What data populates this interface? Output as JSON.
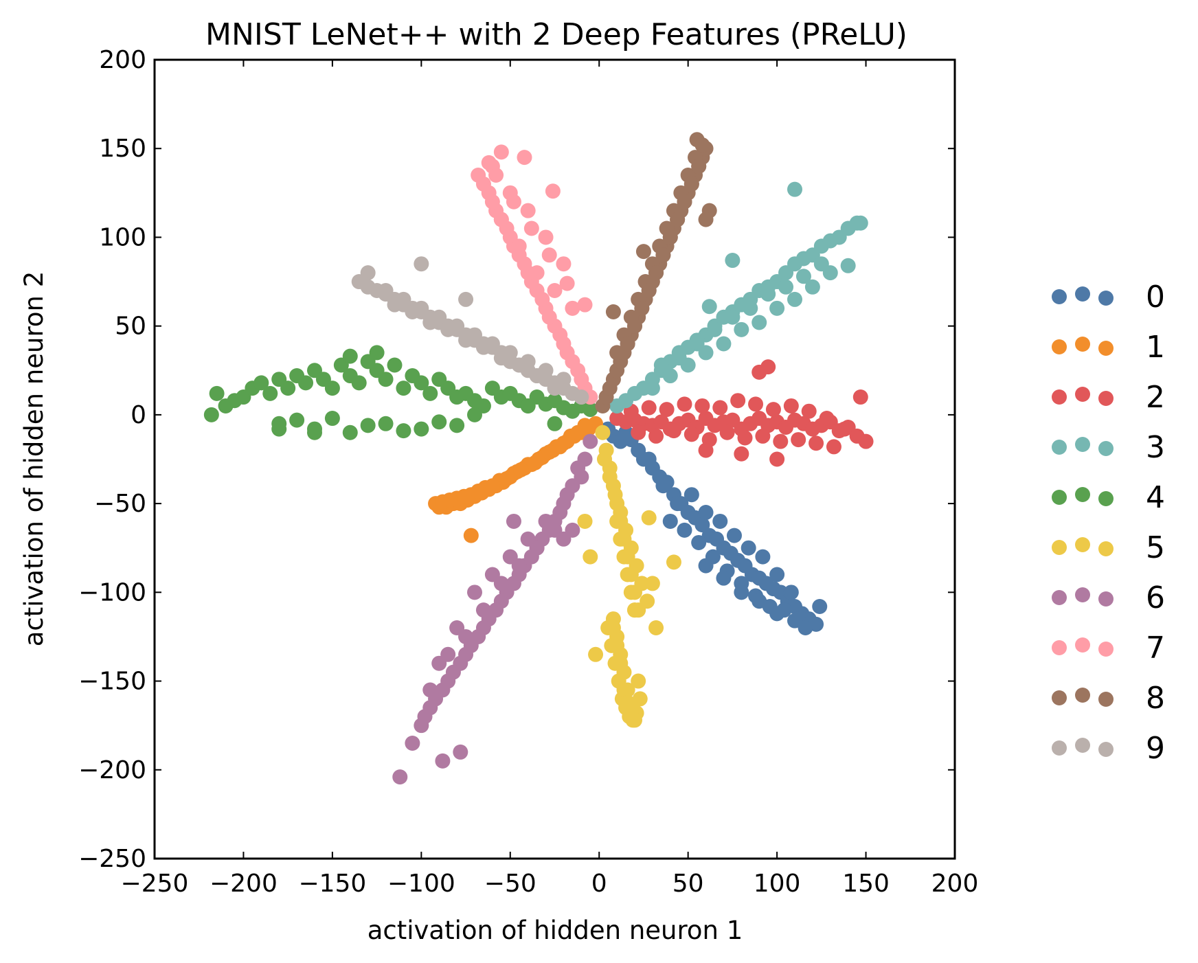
{
  "chart_data": {
    "type": "scatter",
    "title": "MNIST LeNet++ with 2 Deep Features (PReLU)",
    "xlabel": "activation of hidden neuron 1",
    "ylabel": "activation of hidden neuron 2",
    "xlim": [
      -250,
      200
    ],
    "ylim": [
      -250,
      200
    ],
    "xticks": [
      -250,
      -200,
      -150,
      -100,
      -50,
      0,
      50,
      100,
      150,
      200
    ],
    "yticks": [
      -250,
      -200,
      -150,
      -100,
      -50,
      0,
      50,
      100,
      150,
      200
    ],
    "xtick_labels": [
      "−250",
      "−200",
      "−150",
      "−100",
      "−50",
      "0",
      "50",
      "100",
      "150",
      "200"
    ],
    "ytick_labels": [
      "−250",
      "−200",
      "−150",
      "−100",
      "−50",
      "0",
      "50",
      "100",
      "150",
      "200"
    ],
    "grid": false,
    "legend_position": "outside-right",
    "series": [
      {
        "name": "0",
        "color": "#4e79a7",
        "x": [
          5,
          8,
          12,
          15,
          18,
          22,
          25,
          30,
          34,
          38,
          42,
          46,
          50,
          54,
          58,
          62,
          66,
          70,
          74,
          78,
          82,
          86,
          90,
          94,
          98,
          102,
          106,
          110,
          114,
          118,
          122,
          40,
          48,
          56,
          64,
          72,
          80,
          88,
          96,
          104,
          112,
          52,
          60,
          68,
          76,
          84,
          92,
          100,
          108,
          116,
          36,
          44,
          28,
          124,
          60,
          70,
          80,
          90,
          100,
          110
        ],
        "y": [
          -8,
          -12,
          -15,
          -10,
          -14,
          -20,
          -25,
          -30,
          -35,
          -38,
          -45,
          -50,
          -55,
          -58,
          -62,
          -68,
          -70,
          -75,
          -78,
          -82,
          -85,
          -90,
          -92,
          -95,
          -98,
          -100,
          -105,
          -108,
          -112,
          -115,
          -118,
          -60,
          -65,
          -72,
          -80,
          -88,
          -95,
          -102,
          -108,
          -110,
          -115,
          -45,
          -55,
          -60,
          -68,
          -75,
          -80,
          -90,
          -100,
          -120,
          -40,
          -50,
          -25,
          -108,
          -85,
          -92,
          -100,
          -105,
          -112,
          -116
        ]
      },
      {
        "name": "1",
        "color": "#f28e2b",
        "x": [
          -2,
          -6,
          -10,
          -14,
          -18,
          -22,
          -26,
          -30,
          -34,
          -38,
          -42,
          -46,
          -50,
          -54,
          -58,
          -62,
          -66,
          -70,
          -74,
          -78,
          -82,
          -86,
          -90,
          -92,
          -8,
          -16,
          -24,
          -32,
          -40,
          -48,
          -56,
          -64,
          -72,
          -80,
          -88,
          -12,
          -20,
          -28,
          -36,
          -44,
          -52,
          -60,
          -68,
          -76,
          -84,
          -72
        ],
        "y": [
          -5,
          -8,
          -10,
          -12,
          -15,
          -18,
          -20,
          -22,
          -25,
          -28,
          -30,
          -32,
          -35,
          -38,
          -40,
          -42,
          -44,
          -46,
          -48,
          -50,
          -50,
          -52,
          -52,
          -50,
          -6,
          -12,
          -18,
          -24,
          -28,
          -33,
          -37,
          -41,
          -45,
          -47,
          -49,
          -10,
          -16,
          -21,
          -27,
          -31,
          -36,
          -40,
          -43,
          -46,
          -48,
          -68
        ]
      },
      {
        "name": "2",
        "color": "#e15759",
        "x": [
          10,
          15,
          20,
          25,
          30,
          35,
          40,
          45,
          50,
          55,
          60,
          65,
          70,
          75,
          80,
          85,
          90,
          95,
          100,
          105,
          110,
          115,
          120,
          125,
          130,
          135,
          140,
          145,
          150,
          18,
          28,
          38,
          48,
          58,
          68,
          78,
          88,
          98,
          108,
          118,
          128,
          138,
          22,
          32,
          42,
          52,
          62,
          72,
          82,
          92,
          102,
          112,
          122,
          132,
          90,
          147,
          95,
          60,
          80,
          100
        ],
        "y": [
          -2,
          -4,
          -3,
          -5,
          -6,
          -4,
          -8,
          -5,
          -3,
          -7,
          -2,
          -6,
          -4,
          -3,
          -8,
          -5,
          -2,
          -6,
          -4,
          -7,
          -3,
          -5,
          -8,
          -6,
          -4,
          -9,
          -7,
          -12,
          -15,
          2,
          4,
          3,
          6,
          5,
          4,
          8,
          6,
          3,
          5,
          2,
          -2,
          -8,
          -10,
          -12,
          -9,
          -11,
          -14,
          -10,
          -13,
          -12,
          -15,
          -14,
          -16,
          -18,
          24,
          10,
          27,
          -20,
          -22,
          -25
        ]
      },
      {
        "name": "3",
        "color": "#76b7b2",
        "x": [
          10,
          15,
          20,
          25,
          30,
          35,
          40,
          45,
          50,
          55,
          60,
          65,
          70,
          75,
          80,
          85,
          90,
          95,
          100,
          105,
          110,
          115,
          120,
          125,
          130,
          135,
          140,
          145,
          147,
          30,
          40,
          50,
          60,
          70,
          80,
          90,
          100,
          110,
          120,
          130,
          35,
          45,
          55,
          65,
          75,
          85,
          95,
          105,
          115,
          125,
          110,
          62,
          75,
          140
        ],
        "y": [
          5,
          8,
          12,
          15,
          20,
          25,
          30,
          32,
          38,
          40,
          45,
          50,
          55,
          58,
          62,
          65,
          70,
          72,
          75,
          80,
          85,
          88,
          90,
          95,
          98,
          100,
          105,
          108,
          108,
          15,
          22,
          28,
          35,
          40,
          48,
          52,
          60,
          65,
          72,
          80,
          28,
          35,
          42,
          48,
          55,
          60,
          68,
          72,
          78,
          85,
          127,
          61,
          87,
          84
        ]
      },
      {
        "name": "4",
        "color": "#59a14f",
        "x": [
          -218,
          -215,
          -210,
          -205,
          -200,
          -195,
          -190,
          -185,
          -180,
          -175,
          -170,
          -165,
          -160,
          -155,
          -150,
          -145,
          -140,
          -135,
          -130,
          -125,
          -120,
          -115,
          -110,
          -105,
          -100,
          -95,
          -90,
          -85,
          -80,
          -75,
          -70,
          -65,
          -60,
          -55,
          -50,
          -45,
          -40,
          -35,
          -30,
          -25,
          -20,
          -15,
          -10,
          -5,
          -180,
          -160,
          -140,
          -120,
          -100,
          -80,
          -170,
          -150,
          -130,
          -110,
          -90,
          -125,
          -140,
          -160,
          -180,
          -40,
          -25,
          -70
        ],
        "y": [
          0,
          12,
          5,
          8,
          10,
          15,
          18,
          12,
          20,
          15,
          22,
          18,
          25,
          20,
          15,
          28,
          22,
          18,
          30,
          25,
          20,
          28,
          15,
          22,
          18,
          12,
          20,
          15,
          10,
          12,
          8,
          5,
          15,
          10,
          12,
          8,
          5,
          10,
          6,
          8,
          4,
          2,
          5,
          3,
          -5,
          -8,
          -10,
          -5,
          -8,
          -6,
          -3,
          -2,
          -6,
          -9,
          -4,
          35,
          33,
          -10,
          -8,
          5,
          -5,
          0
        ]
      },
      {
        "name": "5",
        "color": "#edc948",
        "x": [
          2,
          4,
          6,
          8,
          10,
          12,
          14,
          16,
          18,
          20,
          22,
          5,
          7,
          9,
          11,
          13,
          15,
          17,
          19,
          21,
          23,
          3,
          6,
          9,
          12,
          15,
          18,
          21,
          24,
          27,
          8,
          10,
          12,
          14,
          16,
          18,
          20,
          22,
          10,
          12,
          14,
          16,
          18,
          20,
          8,
          10,
          12,
          14,
          16,
          18,
          20,
          42,
          -5,
          -8,
          30,
          28,
          -2,
          32
        ],
        "y": [
          -10,
          -20,
          -30,
          -40,
          -50,
          -60,
          -70,
          -80,
          -90,
          -100,
          -110,
          -120,
          -130,
          -140,
          -150,
          -160,
          -165,
          -170,
          -172,
          -168,
          -160,
          -25,
          -35,
          -45,
          -55,
          -65,
          -75,
          -85,
          -95,
          -105,
          -115,
          -125,
          -135,
          -145,
          -155,
          -165,
          -172,
          -150,
          -60,
          -70,
          -80,
          -90,
          -100,
          -110,
          -120,
          -130,
          -140,
          -155,
          -162,
          -170,
          -110,
          -83,
          -80,
          -60,
          -95,
          -58,
          -135,
          -120
        ]
      },
      {
        "name": "6",
        "color": "#b07aa1",
        "x": [
          -5,
          -8,
          -12,
          -15,
          -18,
          -22,
          -25,
          -28,
          -32,
          -35,
          -38,
          -42,
          -45,
          -48,
          -52,
          -55,
          -58,
          -62,
          -65,
          -68,
          -72,
          -75,
          -78,
          -82,
          -85,
          -88,
          -92,
          -95,
          -98,
          -100,
          -105,
          -112,
          -20,
          -30,
          -40,
          -50,
          -60,
          -70,
          -80,
          -90,
          -25,
          -35,
          -45,
          -55,
          -65,
          -75,
          -85,
          -95,
          -15,
          -20,
          -78,
          -88,
          -10,
          -48
        ],
        "y": [
          -15,
          -25,
          -30,
          -40,
          -45,
          -55,
          -60,
          -65,
          -70,
          -75,
          -80,
          -85,
          -90,
          -95,
          -100,
          -105,
          -110,
          -115,
          -120,
          -125,
          -130,
          -135,
          -140,
          -145,
          -150,
          -155,
          -160,
          -165,
          -170,
          -175,
          -185,
          -204,
          -50,
          -60,
          -70,
          -80,
          -90,
          -100,
          -120,
          -140,
          -65,
          -75,
          -85,
          -95,
          -110,
          -125,
          -135,
          -155,
          -65,
          -70,
          -190,
          -195,
          -35,
          -60
        ]
      },
      {
        "name": "7",
        "color": "#ff9da7",
        "x": [
          -5,
          -8,
          -10,
          -12,
          -15,
          -18,
          -20,
          -22,
          -25,
          -28,
          -30,
          -32,
          -35,
          -38,
          -40,
          -42,
          -45,
          -48,
          -50,
          -52,
          -55,
          -58,
          -60,
          -62,
          -65,
          -68,
          -15,
          -25,
          -35,
          -45,
          -55,
          -30,
          -40,
          -50,
          -60,
          -20,
          -28,
          -38,
          -48,
          -58,
          -42,
          -26,
          -8,
          -18,
          -55,
          -62
        ],
        "y": [
          10,
          15,
          20,
          25,
          30,
          35,
          40,
          45,
          50,
          55,
          60,
          65,
          70,
          75,
          80,
          85,
          90,
          95,
          100,
          105,
          110,
          115,
          120,
          125,
          130,
          135,
          60,
          70,
          80,
          95,
          110,
          100,
          115,
          125,
          140,
          85,
          90,
          105,
          120,
          135,
          145,
          126,
          62,
          74,
          148,
          142
        ]
      },
      {
        "name": "8",
        "color": "#9c755f",
        "x": [
          2,
          4,
          6,
          8,
          10,
          12,
          14,
          16,
          18,
          20,
          22,
          24,
          26,
          28,
          30,
          32,
          34,
          36,
          38,
          40,
          42,
          44,
          46,
          48,
          50,
          52,
          54,
          56,
          58,
          60,
          10,
          14,
          18,
          22,
          26,
          30,
          34,
          38,
          42,
          46,
          50,
          54,
          16,
          20,
          24,
          28,
          32,
          36,
          40,
          44,
          48,
          52,
          56,
          55,
          58,
          62,
          60,
          25,
          8
        ],
        "y": [
          5,
          10,
          15,
          20,
          25,
          30,
          35,
          40,
          45,
          50,
          55,
          60,
          65,
          70,
          75,
          80,
          85,
          90,
          95,
          100,
          105,
          110,
          115,
          120,
          125,
          130,
          135,
          140,
          145,
          150,
          35,
          45,
          55,
          65,
          75,
          85,
          95,
          105,
          115,
          125,
          135,
          145,
          40,
          50,
          60,
          70,
          80,
          90,
          100,
          110,
          120,
          130,
          140,
          155,
          152,
          115,
          110,
          92,
          58
        ]
      },
      {
        "name": "9",
        "color": "#bab0ac",
        "x": [
          -10,
          -15,
          -20,
          -25,
          -30,
          -35,
          -40,
          -45,
          -50,
          -55,
          -60,
          -65,
          -70,
          -75,
          -80,
          -85,
          -90,
          -95,
          -100,
          -105,
          -110,
          -115,
          -120,
          -125,
          -130,
          -135,
          -20,
          -30,
          -40,
          -50,
          -60,
          -70,
          -80,
          -90,
          -100,
          -110,
          -120,
          -25,
          -35,
          -45,
          -55,
          -65,
          -75,
          -85,
          -95,
          -105,
          -115,
          -100,
          -130,
          -75
        ],
        "y": [
          10,
          12,
          15,
          18,
          20,
          22,
          25,
          28,
          30,
          35,
          38,
          40,
          42,
          45,
          48,
          50,
          52,
          55,
          58,
          60,
          62,
          65,
          68,
          70,
          72,
          75,
          20,
          25,
          30,
          35,
          40,
          45,
          50,
          55,
          60,
          65,
          70,
          15,
          22,
          28,
          32,
          38,
          42,
          48,
          52,
          58,
          62,
          85,
          80,
          65
        ]
      }
    ]
  }
}
